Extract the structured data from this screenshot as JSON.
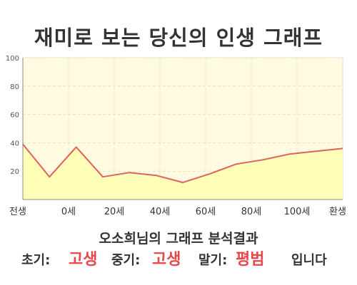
{
  "page_title": "재미로 보는 당신의 인생 그래프",
  "result_title": "오소희님의 그래프 분석결과",
  "summary": {
    "early_label": "초기:",
    "early_value": "고생",
    "mid_label": "중기:",
    "mid_value": "고생",
    "late_label": "말기:",
    "late_value": "평범",
    "suffix": "입니다"
  },
  "colors": {
    "accent": "#e8474a",
    "line": "#e06060",
    "fill_top": "#fffbe0",
    "fill_area": "#ffffb8",
    "axis": "#888888"
  },
  "chart_data": {
    "type": "area",
    "x_tick_labels": [
      "전생",
      "0세",
      "20세",
      "40세",
      "60세",
      "80세",
      "100세",
      "환생"
    ],
    "y_ticks": [
      20,
      40,
      60,
      80,
      100
    ],
    "ylim": [
      0,
      100
    ],
    "grid": true,
    "series": [
      {
        "values": [
          39,
          16,
          37,
          16,
          19,
          17,
          12,
          18,
          25,
          28,
          32,
          34,
          36
        ]
      }
    ]
  }
}
